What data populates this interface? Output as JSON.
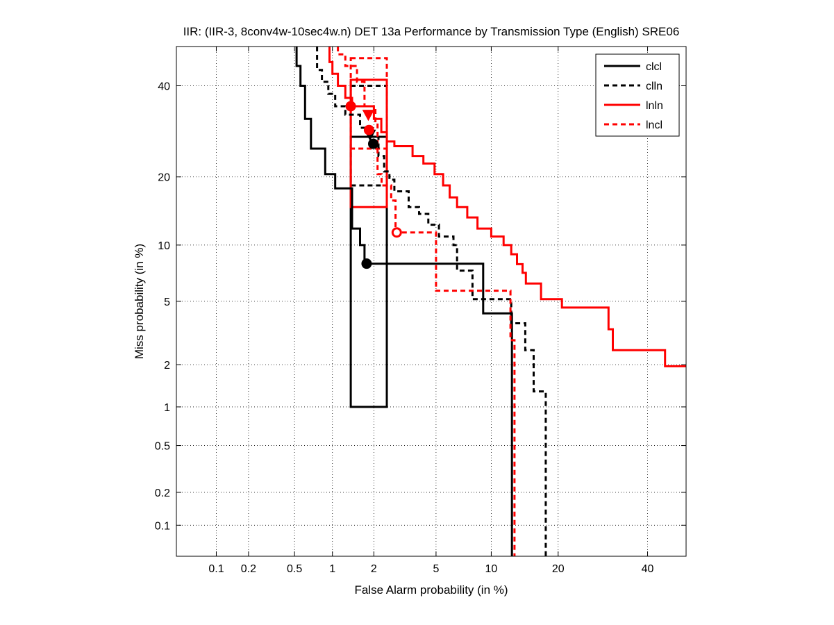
{
  "chart_data": {
    "type": "line",
    "title": "IIR: (IIR-3, 8conv4w-10sec4w.n) DET 13a Performance by Transmission Type (English) SRE06",
    "xlabel": "False Alarm probability (in %)",
    "ylabel": "Miss probability (in %)",
    "scale": "normal-deviate (probit) on both axes",
    "xlim": [
      0.04,
      50
    ],
    "ylim": [
      0.05,
      50
    ],
    "x_ticks": [
      0.1,
      0.2,
      0.5,
      1,
      2,
      5,
      10,
      20,
      40
    ],
    "x_tick_labels": [
      "0.1",
      "0.2",
      "0.5",
      "1",
      "2",
      "5",
      "10",
      "20",
      "40"
    ],
    "y_ticks": [
      0.1,
      0.2,
      0.5,
      1,
      2,
      5,
      10,
      20,
      40
    ],
    "y_tick_labels": [
      "0.1",
      "0.2",
      "0.5",
      "1",
      "2",
      "5",
      "10",
      "20",
      "40"
    ],
    "grid": true,
    "legend_position": "top-right",
    "series": [
      {
        "name": "clcl",
        "color": "#000000",
        "dash": "solid",
        "points": [
          [
            0.52,
            50
          ],
          [
            0.52,
            45
          ],
          [
            0.56,
            45
          ],
          [
            0.56,
            40
          ],
          [
            0.61,
            40
          ],
          [
            0.61,
            32
          ],
          [
            0.68,
            32
          ],
          [
            0.68,
            25.5
          ],
          [
            0.88,
            25.5
          ],
          [
            0.88,
            20.5
          ],
          [
            1.05,
            20.5
          ],
          [
            1.05,
            18
          ],
          [
            1.4,
            18
          ],
          [
            1.4,
            12
          ],
          [
            1.6,
            12
          ],
          [
            1.6,
            10
          ],
          [
            1.72,
            10
          ],
          [
            1.72,
            8.05
          ],
          [
            9.1,
            8.05
          ],
          [
            9.1,
            4.25
          ],
          [
            12.6,
            4.25
          ],
          [
            12.6,
            0.05
          ]
        ]
      },
      {
        "name": "clln",
        "color": "#000000",
        "dash": "dashed",
        "points": [
          [
            0.76,
            50
          ],
          [
            0.76,
            44
          ],
          [
            0.83,
            44
          ],
          [
            0.83,
            41
          ],
          [
            0.93,
            41
          ],
          [
            0.93,
            38
          ],
          [
            1.05,
            38
          ],
          [
            1.05,
            35
          ],
          [
            1.25,
            35
          ],
          [
            1.25,
            33
          ],
          [
            1.6,
            33
          ],
          [
            1.6,
            30
          ],
          [
            1.9,
            30
          ],
          [
            1.9,
            28
          ],
          [
            2.15,
            28
          ],
          [
            2.15,
            24
          ],
          [
            2.35,
            24
          ],
          [
            2.35,
            21
          ],
          [
            2.55,
            21
          ],
          [
            2.55,
            19.5
          ],
          [
            2.75,
            19.5
          ],
          [
            2.75,
            17.5
          ],
          [
            3.4,
            17.5
          ],
          [
            3.4,
            15
          ],
          [
            3.95,
            15
          ],
          [
            3.95,
            14
          ],
          [
            4.5,
            14
          ],
          [
            4.5,
            12.5
          ],
          [
            5.2,
            12.5
          ],
          [
            5.2,
            11
          ],
          [
            6.3,
            11
          ],
          [
            6.3,
            10
          ],
          [
            6.6,
            10
          ],
          [
            6.6,
            7.4
          ],
          [
            8.0,
            7.4
          ],
          [
            8.0,
            5.15
          ],
          [
            12.5,
            5.15
          ],
          [
            12.5,
            3.7
          ],
          [
            14.5,
            3.7
          ],
          [
            14.5,
            2.5
          ],
          [
            15.8,
            2.5
          ],
          [
            15.8,
            1.3
          ],
          [
            17.8,
            1.3
          ],
          [
            17.8,
            0.05
          ]
        ]
      },
      {
        "name": "lnln",
        "color": "#ff0000",
        "dash": "solid",
        "points": [
          [
            0.95,
            50
          ],
          [
            0.95,
            46
          ],
          [
            1.0,
            46
          ],
          [
            1.0,
            43
          ],
          [
            1.1,
            43
          ],
          [
            1.1,
            40
          ],
          [
            1.25,
            40
          ],
          [
            1.25,
            37
          ],
          [
            1.4,
            37
          ],
          [
            1.4,
            35
          ],
          [
            2.0,
            35
          ],
          [
            2.0,
            32
          ],
          [
            2.25,
            32
          ],
          [
            2.25,
            29
          ],
          [
            2.45,
            29
          ],
          [
            2.45,
            27
          ],
          [
            2.75,
            27
          ],
          [
            2.75,
            26
          ],
          [
            3.6,
            26
          ],
          [
            3.6,
            24
          ],
          [
            4.2,
            24
          ],
          [
            4.2,
            22.5
          ],
          [
            4.9,
            22.5
          ],
          [
            4.9,
            20.5
          ],
          [
            5.5,
            20.5
          ],
          [
            5.5,
            18.5
          ],
          [
            6.0,
            18.5
          ],
          [
            6.0,
            16.5
          ],
          [
            6.6,
            16.5
          ],
          [
            6.6,
            15
          ],
          [
            7.5,
            15
          ],
          [
            7.5,
            13.5
          ],
          [
            8.5,
            13.5
          ],
          [
            8.5,
            12
          ],
          [
            10.0,
            12
          ],
          [
            10.0,
            11
          ],
          [
            11.5,
            11
          ],
          [
            11.5,
            10
          ],
          [
            12.5,
            10
          ],
          [
            12.5,
            9
          ],
          [
            13.3,
            9
          ],
          [
            13.3,
            8
          ],
          [
            14.1,
            8
          ],
          [
            14.1,
            7.2
          ],
          [
            14.6,
            7.2
          ],
          [
            14.6,
            6.3
          ],
          [
            17.0,
            6.3
          ],
          [
            17.0,
            5.15
          ],
          [
            20.7,
            5.15
          ],
          [
            20.7,
            4.6
          ],
          [
            30.5,
            4.6
          ],
          [
            30.5,
            3.4
          ],
          [
            31.5,
            3.4
          ],
          [
            31.5,
            2.5
          ],
          [
            44.5,
            2.5
          ],
          [
            44.5,
            1.95
          ],
          [
            50,
            1.95
          ]
        ]
      },
      {
        "name": "lncl",
        "color": "#ff0000",
        "dash": "dashed",
        "points": [
          [
            1.1,
            50
          ],
          [
            1.1,
            48
          ],
          [
            1.25,
            48
          ],
          [
            1.25,
            45
          ],
          [
            1.52,
            45
          ],
          [
            1.52,
            41
          ],
          [
            1.72,
            41
          ],
          [
            1.72,
            35
          ],
          [
            2.05,
            35
          ],
          [
            2.05,
            31
          ],
          [
            2.12,
            31
          ],
          [
            2.12,
            20.5
          ],
          [
            2.26,
            20.5
          ],
          [
            2.26,
            18.5
          ],
          [
            2.62,
            18.5
          ],
          [
            2.62,
            16
          ],
          [
            2.8,
            16
          ],
          [
            2.8,
            11.5
          ],
          [
            5.0,
            11.5
          ],
          [
            5.0,
            5.75
          ],
          [
            12.4,
            5.75
          ],
          [
            12.4,
            2.9
          ],
          [
            12.95,
            2.9
          ],
          [
            12.95,
            0.05
          ]
        ]
      }
    ],
    "markers": [
      {
        "series": "clcl",
        "x": 1.98,
        "y": 26.5,
        "shape": "circle",
        "filled": true
      },
      {
        "series": "clcl",
        "x": 1.78,
        "y": 8.05,
        "shape": "circle",
        "filled": true
      },
      {
        "series": "clln",
        "x": 1.88,
        "y": 28.5,
        "shape": "triangle-down",
        "filled": true
      },
      {
        "series": "lnln",
        "x": 1.37,
        "y": 35,
        "shape": "circle",
        "filled": true
      },
      {
        "series": "lnln",
        "x": 1.85,
        "y": 29.5,
        "shape": "circle",
        "filled": true
      },
      {
        "series": "lncl",
        "x": 1.83,
        "y": 33,
        "shape": "triangle-down",
        "filled": true
      },
      {
        "series": "lncl",
        "x": 2.85,
        "y": 11.5,
        "shape": "circle",
        "filled": false
      }
    ],
    "confidence_boxes": [
      {
        "series": "clcl",
        "x": [
          1.37,
          2.45
        ],
        "y": [
          1.0,
          28.0
        ]
      },
      {
        "series": "clln",
        "x": [
          1.37,
          2.45
        ],
        "y": [
          18.5,
          40.0
        ]
      },
      {
        "series": "lnln",
        "x": [
          1.37,
          2.45
        ],
        "y": [
          15.0,
          41.5
        ]
      },
      {
        "series": "lncl",
        "x": [
          1.37,
          2.45
        ],
        "y": [
          25.5,
          47.0
        ]
      }
    ]
  }
}
